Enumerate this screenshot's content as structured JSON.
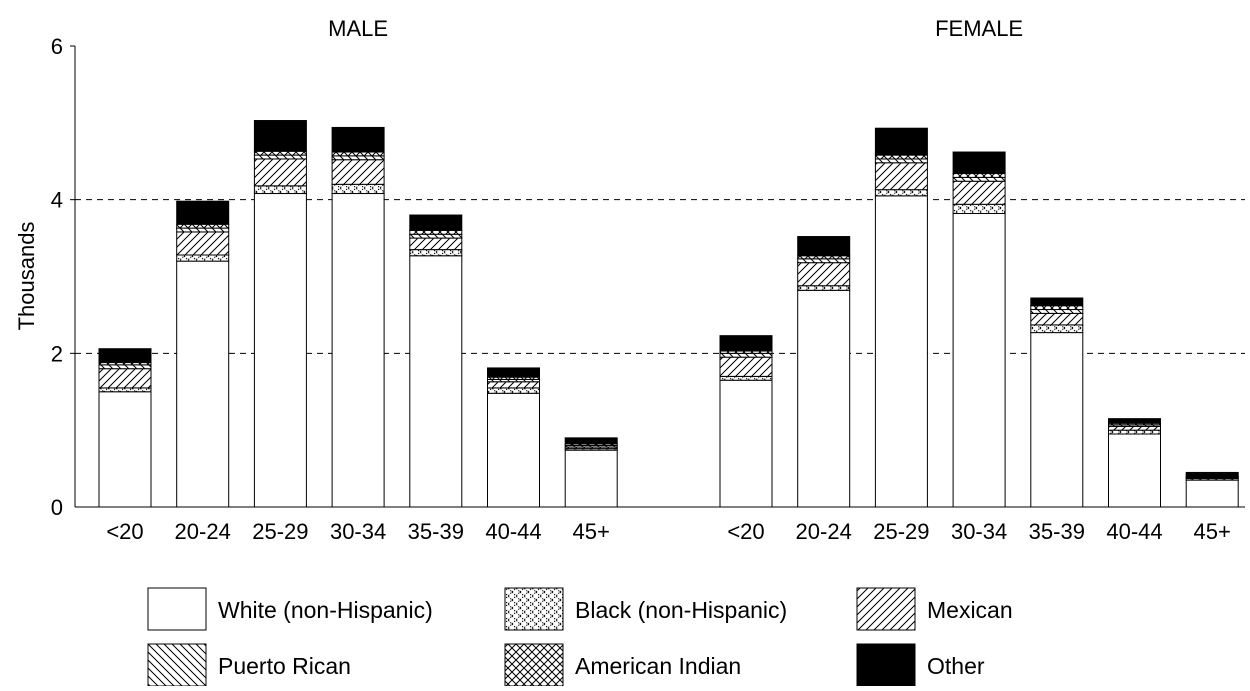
{
  "chart_data": {
    "type": "bar",
    "stacked": true,
    "ylabel": "Thousands",
    "ylim": [
      0,
      6
    ],
    "y_ticks": [
      "0",
      "2",
      "4",
      "6"
    ],
    "grid": "dashed horizontal at 2 and 4",
    "categories": [
      "<20",
      "20-24",
      "25-29",
      "30-34",
      "35-39",
      "40-44",
      "45+"
    ],
    "series_names": [
      "White (non-Hispanic)",
      "Black (non-Hispanic)",
      "Mexican",
      "Puerto Rican",
      "American Indian",
      "Other"
    ],
    "panels": [
      {
        "title": "MALE",
        "series": [
          {
            "name": "White (non-Hispanic)",
            "values": [
              1.5,
              3.2,
              4.08,
              4.08,
              3.27,
              1.48,
              0.74
            ]
          },
          {
            "name": "Black (non-Hispanic)",
            "values": [
              0.05,
              0.08,
              0.1,
              0.12,
              0.08,
              0.07,
              0.02
            ]
          },
          {
            "name": "Mexican",
            "values": [
              0.25,
              0.3,
              0.35,
              0.32,
              0.15,
              0.08,
              0.02
            ]
          },
          {
            "name": "Puerto Rican",
            "values": [
              0.05,
              0.05,
              0.05,
              0.05,
              0.05,
              0.03,
              0.02
            ]
          },
          {
            "name": "American Indian",
            "values": [
              0.03,
              0.05,
              0.05,
              0.05,
              0.05,
              0.03,
              0.02
            ]
          },
          {
            "name": "Other",
            "values": [
              0.18,
              0.3,
              0.4,
              0.32,
              0.2,
              0.12,
              0.08
            ]
          }
        ]
      },
      {
        "title": "FEMALE",
        "series": [
          {
            "name": "White (non-Hispanic)",
            "values": [
              1.65,
              2.82,
              4.05,
              3.82,
              2.27,
              0.95,
              0.35
            ]
          },
          {
            "name": "Black (non-Hispanic)",
            "values": [
              0.05,
              0.06,
              0.08,
              0.12,
              0.1,
              0.05,
              0.02
            ]
          },
          {
            "name": "Mexican",
            "values": [
              0.25,
              0.3,
              0.35,
              0.3,
              0.15,
              0.05,
              0.01
            ]
          },
          {
            "name": "Puerto Rican",
            "values": [
              0.05,
              0.05,
              0.05,
              0.05,
              0.05,
              0.02,
              0.01
            ]
          },
          {
            "name": "American Indian",
            "values": [
              0.03,
              0.04,
              0.05,
              0.05,
              0.05,
              0.02,
              0.01
            ]
          },
          {
            "name": "Other",
            "values": [
              0.2,
              0.25,
              0.35,
              0.28,
              0.1,
              0.06,
              0.05
            ]
          }
        ]
      }
    ],
    "legend": [
      {
        "label": "White (non-Hispanic)",
        "pattern": "solid-white"
      },
      {
        "label": "Black (non-Hispanic)",
        "pattern": "dotted-crosshatch"
      },
      {
        "label": "Mexican",
        "pattern": "diagonal-forward"
      },
      {
        "label": "Puerto Rican",
        "pattern": "diagonal-backward"
      },
      {
        "label": "American Indian",
        "pattern": "crosshatch"
      },
      {
        "label": "Other",
        "pattern": "solid-black"
      }
    ],
    "legend_position": "bottom"
  }
}
